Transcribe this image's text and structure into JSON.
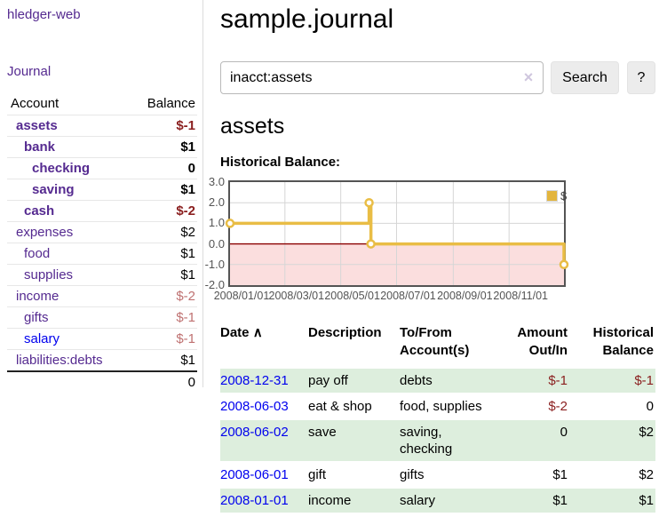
{
  "app": {
    "title": "hledger-web",
    "nav_journal": "Journal"
  },
  "sidebar": {
    "columns": {
      "account": "Account",
      "balance": "Balance"
    },
    "accounts": [
      {
        "name": "assets",
        "indent": 0,
        "bold": true,
        "balance": "$-1",
        "balance_class": "neg-strong",
        "link_color": "purple"
      },
      {
        "name": "bank",
        "indent": 1,
        "bold": true,
        "balance": "$1",
        "balance_class": "",
        "link_color": "purple"
      },
      {
        "name": "checking",
        "indent": 2,
        "bold": true,
        "balance": "0",
        "balance_class": "",
        "link_color": "purple"
      },
      {
        "name": "saving",
        "indent": 2,
        "bold": true,
        "balance": "$1",
        "balance_class": "",
        "link_color": "purple"
      },
      {
        "name": "cash",
        "indent": 1,
        "bold": true,
        "balance": "$-2",
        "balance_class": "neg-strong",
        "link_color": "purple"
      },
      {
        "name": "expenses",
        "indent": 0,
        "bold": false,
        "balance": "$2",
        "balance_class": "",
        "link_color": "purple"
      },
      {
        "name": "food",
        "indent": 1,
        "bold": false,
        "balance": "$1",
        "balance_class": "",
        "link_color": "purple"
      },
      {
        "name": "supplies",
        "indent": 1,
        "bold": false,
        "balance": "$1",
        "balance_class": "",
        "link_color": "purple"
      },
      {
        "name": "income",
        "indent": 0,
        "bold": false,
        "balance": "$-2",
        "balance_class": "neg-soft",
        "link_color": "purple"
      },
      {
        "name": "gifts",
        "indent": 1,
        "bold": false,
        "balance": "$-1",
        "balance_class": "neg-soft",
        "link_color": "purple"
      },
      {
        "name": "salary",
        "indent": 1,
        "bold": false,
        "balance": "$-1",
        "balance_class": "neg-soft",
        "link_color": "blue"
      },
      {
        "name": "liabilities:debts",
        "indent": 0,
        "bold": false,
        "balance": "$1",
        "balance_class": "",
        "link_color": "purple"
      }
    ],
    "total": "0"
  },
  "header": {
    "title": "sample.journal"
  },
  "search": {
    "value": "inacct:assets",
    "clear_icon": "×",
    "button": "Search",
    "help_button": "?"
  },
  "account_page": {
    "title": "assets",
    "chart_label": "Historical Balance:"
  },
  "chart_data": {
    "type": "line",
    "title": "Historical Balance",
    "step": true,
    "series": [
      {
        "name": "$",
        "color": "#e9bd45",
        "points": [
          {
            "x": "2008/01/01",
            "y": 1
          },
          {
            "x": "2008/06/01",
            "y": 2
          },
          {
            "x": "2008/06/03",
            "y": 0
          },
          {
            "x": "2008/12/31",
            "y": -1
          }
        ]
      }
    ],
    "x_range": [
      "2008/01/01",
      "2008/12/31"
    ],
    "ylim": [
      -2,
      3
    ],
    "y_ticks": [
      {
        "v": 3,
        "label": "3.0"
      },
      {
        "v": 2,
        "label": "2.0"
      },
      {
        "v": 1,
        "label": "1.0"
      },
      {
        "v": 0,
        "label": "0.0"
      },
      {
        "v": -1,
        "label": "-1.0"
      },
      {
        "v": -2,
        "label": "-2.0"
      }
    ],
    "x_ticks": [
      "2008/01/01",
      "2008/03/01",
      "2008/05/01",
      "2008/07/01",
      "2008/09/01",
      "2008/11/01"
    ],
    "grid": true,
    "grid_color": "#d6d6d6",
    "negative_region_color": "#fbdede",
    "zero_line_color": "#8b0000",
    "legend": {
      "label": "$",
      "swatch_color": "#e3b53e",
      "position": "top-right"
    }
  },
  "register": {
    "columns": [
      {
        "line1": "Date",
        "line2": "",
        "icon": "∧",
        "align": "left"
      },
      {
        "line1": "Description",
        "line2": "",
        "icon": "",
        "align": "left"
      },
      {
        "line1": "To/From",
        "line2": "Account(s)",
        "icon": "",
        "align": "left"
      },
      {
        "line1": "Amount",
        "line2": "Out/In",
        "icon": "",
        "align": "right"
      },
      {
        "line1": "Historical",
        "line2": "Balance",
        "icon": "",
        "align": "right"
      }
    ],
    "rows": [
      {
        "date": "2008-12-31",
        "description": "pay off",
        "accounts": "debts",
        "amount": "$-1",
        "amount_negative": true,
        "balance": "$-1",
        "balance_negative": true,
        "shaded": true
      },
      {
        "date": "2008-06-03",
        "description": "eat & shop",
        "accounts": "food, supplies",
        "amount": "$-2",
        "amount_negative": true,
        "balance": "0",
        "balance_negative": false,
        "shaded": false
      },
      {
        "date": "2008-06-02",
        "description": "save",
        "accounts": "saving, checking",
        "amount": "0",
        "amount_negative": false,
        "balance": "$2",
        "balance_negative": false,
        "shaded": true
      },
      {
        "date": "2008-06-01",
        "description": "gift",
        "accounts": "gifts",
        "amount": "$1",
        "amount_negative": false,
        "balance": "$2",
        "balance_negative": false,
        "shaded": false
      },
      {
        "date": "2008-01-01",
        "description": "income",
        "accounts": "salary",
        "amount": "$1",
        "amount_negative": false,
        "balance": "$1",
        "balance_negative": false,
        "shaded": true
      }
    ]
  },
  "colors": {
    "link_purple": "#552a90",
    "link_blue": "#0000ee",
    "negative_strong": "#8b2020",
    "negative_soft": "#bf7171",
    "row_stripe_green": "#ddeedd",
    "chart_line_gold": "#e9bd45",
    "chart_negative_pink": "#fbdede",
    "chart_zero_line": "#8b0000",
    "button_gray": "#ececec"
  }
}
